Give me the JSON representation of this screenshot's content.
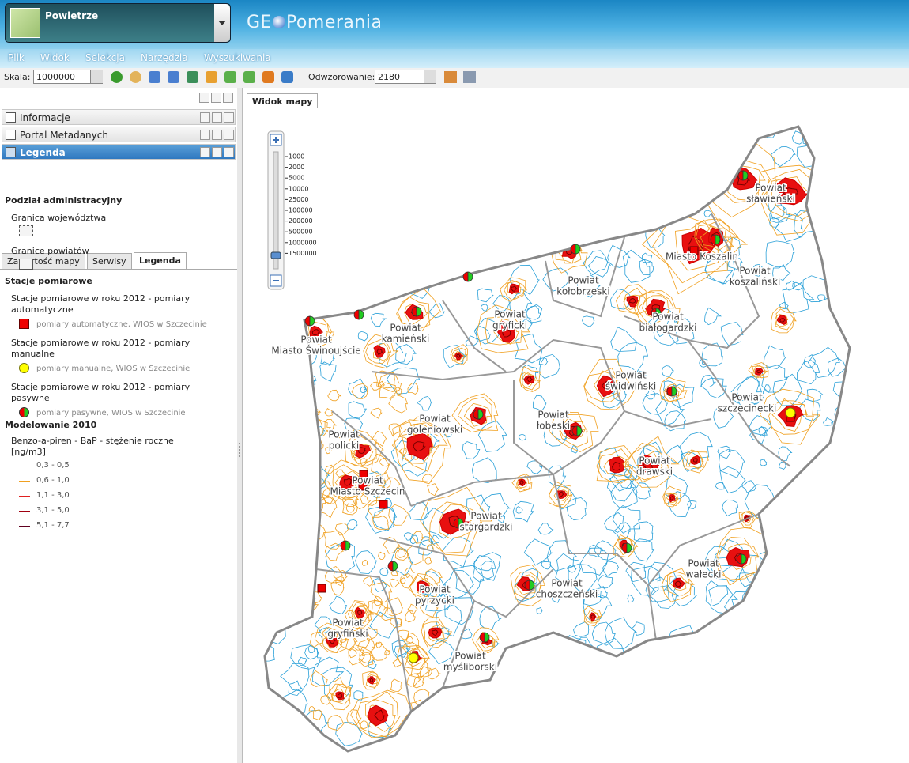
{
  "header": {
    "layer": "Powietrze",
    "logo_left": "GE",
    "logo_right": "Pomerania"
  },
  "menu": [
    "Plik",
    "Widok",
    "Selekcja",
    "Narzędzia",
    "Wyszukiwania"
  ],
  "toolbar": {
    "scale_label": "Skala:",
    "scale_value": "1000000",
    "projection_label": "Odwzorowanie:",
    "projection_value": "2180"
  },
  "panels": [
    "Informacje",
    "Portal Metadanych",
    "Legenda"
  ],
  "tabs": [
    "Zawartość mapy",
    "Serwisy",
    "Legenda"
  ],
  "legend": {
    "admin": {
      "title": "Podział administracyjny",
      "items": [
        "Granica województwa",
        "Granice powiatów"
      ]
    },
    "stations": {
      "title": "Stacje pomiarowe",
      "groups": [
        {
          "name": "Stacje pomiarowe w roku 2012 - pomiary automatyczne",
          "item": "pomiary automatyczne, WIOS w Szczecinie"
        },
        {
          "name": "Stacje pomiarowe w roku 2012 - pomiary manualne",
          "item": "pomiary manualne, WIOS w Szczecinie"
        },
        {
          "name": "Stacje pomiarowe w roku 2012 - pomiary pasywne",
          "item": "pomiary pasywne, WIOS w Szczecinie"
        }
      ]
    },
    "model": {
      "title": "Modelowanie 2010",
      "layer": "Benzo-a-piren - BaP - stężenie roczne [ng/m3]",
      "classes": [
        "0,3 - 0,5",
        "0,6 - 1,0",
        "1,1 - 3,0",
        "3,1 - 5,0",
        "5,1 - 7,7"
      ]
    }
  },
  "map": {
    "tab": "Widok mapy",
    "scales": [
      1000,
      2000,
      5000,
      10000,
      25000,
      100000,
      200000,
      500000,
      1000000,
      1500000
    ],
    "labels": [
      [
        "Powiat",
        "sławieński"
      ],
      [
        "Miasto Koszalin"
      ],
      [
        "Powiat",
        "koszaliński"
      ],
      [
        "Powiat",
        "kołobrzeski"
      ],
      [
        "Powiat",
        "białogardzki"
      ],
      [
        "Powiat",
        "gryficki"
      ],
      [
        "Powiat",
        "kamieński"
      ],
      [
        "Powiat",
        "Miasto Świnoujście"
      ],
      [
        "Powiat",
        "świdwiński"
      ],
      [
        "Powiat",
        "szczecinecki"
      ],
      [
        "Powiat",
        "goleniowski"
      ],
      [
        "Powiat",
        "łobeski"
      ],
      [
        "Powiat",
        "drawski"
      ],
      [
        "Powiat",
        "policki"
      ],
      [
        "Powiat",
        "Miasto Szczecin"
      ],
      [
        "Powiat",
        "stargardzki"
      ],
      [
        "Powiat",
        "wałecki"
      ],
      [
        "Powiat",
        "pyrzycki"
      ],
      [
        "Powiat",
        "choszczeński"
      ],
      [
        "Powiat",
        "gryfiński"
      ],
      [
        "Powiat",
        "myśliborski"
      ]
    ]
  }
}
